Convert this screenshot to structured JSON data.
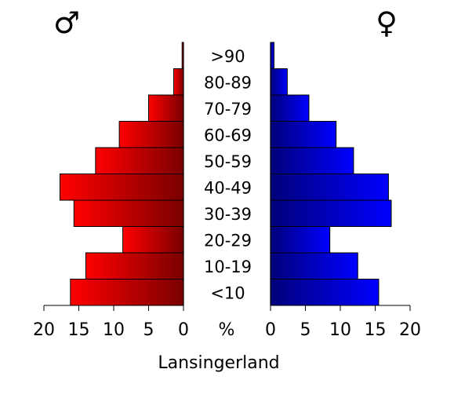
{
  "chart_data": {
    "type": "bar",
    "orientation": "horizontal",
    "subtype": "population-pyramid",
    "title": "Lansingerland",
    "center_unit": "%",
    "categories": [
      "<10",
      "10-19",
      "20-29",
      "30-39",
      "40-49",
      "50-59",
      "60-69",
      "70-79",
      "80-89",
      ">90"
    ],
    "series": [
      {
        "name": "♂",
        "side": "left",
        "color_light": "#ff0000",
        "color_dark": "#7a0000",
        "values": [
          16.2,
          14.0,
          8.7,
          15.7,
          17.7,
          12.6,
          9.2,
          5.0,
          1.4,
          0.2
        ]
      },
      {
        "name": "♀",
        "side": "right",
        "color_light": "#0000ff",
        "color_dark": "#00007a",
        "values": [
          15.5,
          12.5,
          8.5,
          17.3,
          16.9,
          11.9,
          9.4,
          5.5,
          2.4,
          0.5
        ]
      }
    ],
    "xlim": [
      0,
      20
    ],
    "ticks": [
      0,
      5,
      10,
      15,
      20
    ],
    "tick_labels_left": [
      "20",
      "15",
      "10",
      "5",
      "0"
    ],
    "tick_labels_right": [
      "0",
      "5",
      "10",
      "15",
      "20"
    ]
  }
}
